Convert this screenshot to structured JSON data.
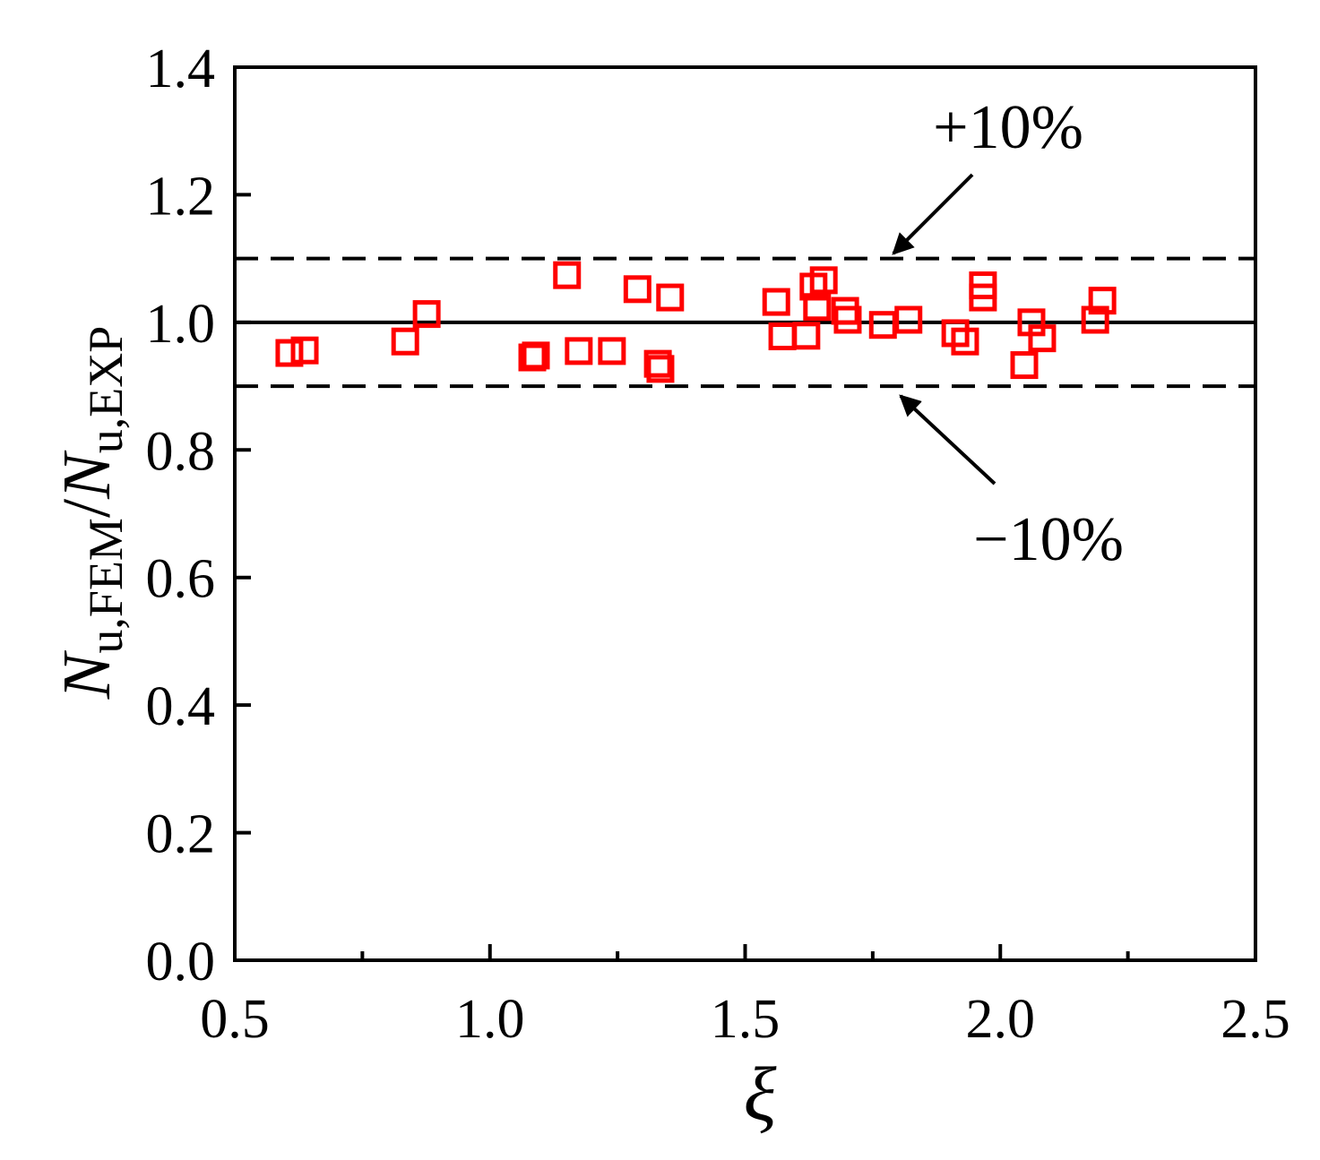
{
  "chart_data": {
    "type": "scatter",
    "xlabel": "ξ",
    "ylabel": [
      "N",
      "u,FEM",
      "/",
      "N",
      "u,EXP"
    ],
    "xlim": [
      0.5,
      2.5
    ],
    "ylim": [
      0,
      1.4
    ],
    "xticks": [
      0.5,
      {
        "value": 1,
        "label": "1.0"
      },
      1.5,
      {
        "value": 2,
        "label": "2.0"
      },
      2.5
    ],
    "xminorticks": [
      0.75,
      1.25,
      1.75,
      2.25
    ],
    "yticks": [
      {
        "value": 0,
        "label": "0.0"
      },
      0.2,
      0.4,
      0.6,
      0.8,
      {
        "value": 1,
        "label": "1.0"
      },
      1.2,
      1.4
    ],
    "reference_lines": [
      {
        "value": 1.0,
        "style": "solid"
      },
      {
        "value": 1.1,
        "style": "dashed"
      },
      {
        "value": 0.9,
        "style": "dashed"
      }
    ],
    "annotations": [
      "+10%",
      "−10%"
    ],
    "series": [
      {
        "color": "#ff0000",
        "marker": "square",
        "x": [
          0.607,
          0.637,
          0.834,
          0.876,
          1.083,
          1.09,
          1.151,
          1.174,
          1.239,
          1.289,
          1.329,
          1.334,
          1.353,
          1.561,
          1.573,
          1.62,
          1.641,
          1.634,
          1.654,
          1.696,
          1.701,
          1.77,
          1.82,
          1.912,
          1.931,
          1.966,
          1.966,
          2.047,
          2.061,
          2.082,
          2.186,
          2.2
        ],
        "values": [
          0.952,
          0.956,
          0.97,
          1.013,
          0.945,
          0.948,
          1.074,
          0.955,
          0.955,
          1.052,
          0.935,
          0.927,
          1.039,
          1.032,
          0.978,
          0.979,
          1.024,
          1.056,
          1.066,
          1.018,
          1.004,
          0.996,
          1.004,
          0.983,
          0.97,
          1.058,
          1.039,
          0.933,
          1.0,
          0.975,
          1.004,
          1.034
        ]
      }
    ]
  }
}
